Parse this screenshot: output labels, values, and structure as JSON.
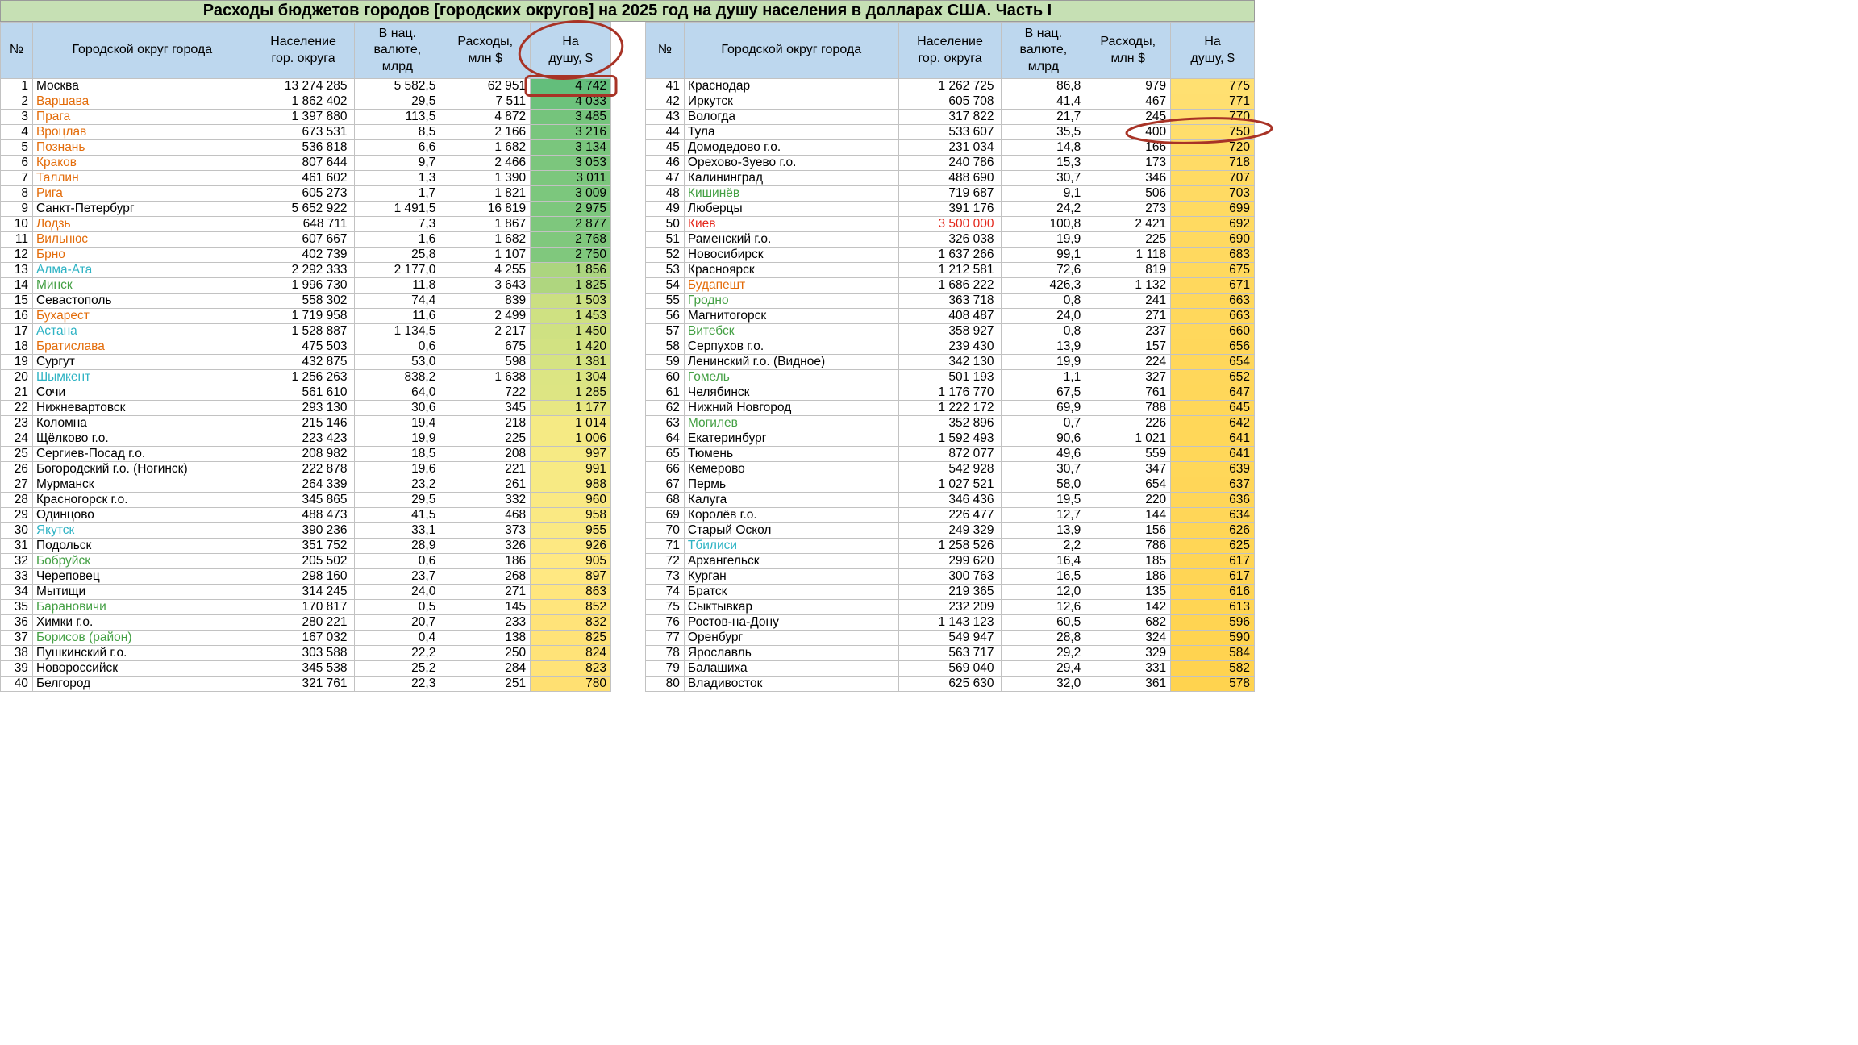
{
  "chart_data": {
    "type": "table",
    "title": "Расходы бюджетов городов [городских округов] на 2025 год на душу населения в долларах США. Часть I",
    "columns": [
      "№",
      "Городской округ города",
      "Население гор. округа",
      "В нац. валюте, млрд",
      "Расходы, млн $",
      "На душу, $"
    ],
    "rows": [
      [
        1,
        "Москва",
        "black",
        "13 274 285",
        "5 582,5",
        "62 951",
        "4 742"
      ],
      [
        2,
        "Варшава",
        "orange",
        "1 862 402",
        "29,5",
        "7 511",
        "4 033"
      ],
      [
        3,
        "Прага",
        "orange",
        "1 397 880",
        "113,5",
        "4 872",
        "3 485"
      ],
      [
        4,
        "Вроцлав",
        "orange",
        "673 531",
        "8,5",
        "2 166",
        "3 216"
      ],
      [
        5,
        "Познань",
        "orange",
        "536 818",
        "6,6",
        "1 682",
        "3 134"
      ],
      [
        6,
        "Краков",
        "orange",
        "807 644",
        "9,7",
        "2 466",
        "3 053"
      ],
      [
        7,
        "Таллин",
        "orange",
        "461 602",
        "1,3",
        "1 390",
        "3 011"
      ],
      [
        8,
        "Рига",
        "orange",
        "605 273",
        "1,7",
        "1 821",
        "3 009"
      ],
      [
        9,
        "Санкт-Петербург",
        "black",
        "5 652 922",
        "1 491,5",
        "16 819",
        "2 975"
      ],
      [
        10,
        "Лодзь",
        "orange",
        "648 711",
        "7,3",
        "1 867",
        "2 877"
      ],
      [
        11,
        "Вильнюс",
        "orange",
        "607 667",
        "1,6",
        "1 682",
        "2 768"
      ],
      [
        12,
        "Брно",
        "orange",
        "402 739",
        "25,8",
        "1 107",
        "2 750"
      ],
      [
        13,
        "Алма-Ата",
        "cyan",
        "2 292 333",
        "2 177,0",
        "4 255",
        "1 856"
      ],
      [
        14,
        "Минск",
        "green",
        "1 996 730",
        "11,8",
        "3 643",
        "1 825"
      ],
      [
        15,
        "Севастополь",
        "black",
        "558 302",
        "74,4",
        "839",
        "1 503"
      ],
      [
        16,
        "Бухарест",
        "orange",
        "1 719 958",
        "11,6",
        "2 499",
        "1 453"
      ],
      [
        17,
        "Астана",
        "cyan",
        "1 528 887",
        "1 134,5",
        "2 217",
        "1 450"
      ],
      [
        18,
        "Братислава",
        "orange",
        "475 503",
        "0,6",
        "675",
        "1 420"
      ],
      [
        19,
        "Сургут",
        "black",
        "432 875",
        "53,0",
        "598",
        "1 381"
      ],
      [
        20,
        "Шымкент",
        "cyan",
        "1 256 263",
        "838,2",
        "1 638",
        "1 304"
      ],
      [
        21,
        "Сочи",
        "black",
        "561 610",
        "64,0",
        "722",
        "1 285"
      ],
      [
        22,
        "Нижневартовск",
        "black",
        "293 130",
        "30,6",
        "345",
        "1 177"
      ],
      [
        23,
        "Коломна",
        "black",
        "215 146",
        "19,4",
        "218",
        "1 014"
      ],
      [
        24,
        "Щёлково г.о.",
        "black",
        "223 423",
        "19,9",
        "225",
        "1 006"
      ],
      [
        25,
        "Сергиев-Посад г.о.",
        "black",
        "208 982",
        "18,5",
        "208",
        "997"
      ],
      [
        26,
        "Богородский г.о. (Ногинск)",
        "black",
        "222 878",
        "19,6",
        "221",
        "991"
      ],
      [
        27,
        "Мурманск",
        "black",
        "264 339",
        "23,2",
        "261",
        "988"
      ],
      [
        28,
        "Красногорск г.о.",
        "black",
        "345 865",
        "29,5",
        "332",
        "960"
      ],
      [
        29,
        "Одинцово",
        "black",
        "488 473",
        "41,5",
        "468",
        "958"
      ],
      [
        30,
        "Якутск",
        "cyan",
        "390 236",
        "33,1",
        "373",
        "955"
      ],
      [
        31,
        "Подольск",
        "black",
        "351 752",
        "28,9",
        "326",
        "926"
      ],
      [
        32,
        "Бобруйск",
        "green",
        "205 502",
        "0,6",
        "186",
        "905"
      ],
      [
        33,
        "Череповец",
        "black",
        "298 160",
        "23,7",
        "268",
        "897"
      ],
      [
        34,
        "Мытищи",
        "black",
        "314 245",
        "24,0",
        "271",
        "863"
      ],
      [
        35,
        "Барановичи",
        "green",
        "170 817",
        "0,5",
        "145",
        "852"
      ],
      [
        36,
        "Химки г.о.",
        "black",
        "280 221",
        "20,7",
        "233",
        "832"
      ],
      [
        37,
        "Борисов (район)",
        "green",
        "167 032",
        "0,4",
        "138",
        "825"
      ],
      [
        38,
        "Пушкинский г.о.",
        "black",
        "303 588",
        "22,2",
        "250",
        "824"
      ],
      [
        39,
        "Новороссийск",
        "black",
        "345 538",
        "25,2",
        "284",
        "823"
      ],
      [
        40,
        "Белгород",
        "black",
        "321 761",
        "22,3",
        "251",
        "780"
      ],
      [
        41,
        "Краснодар",
        "black",
        "1 262 725",
        "86,8",
        "979",
        "775"
      ],
      [
        42,
        "Иркутск",
        "black",
        "605 708",
        "41,4",
        "467",
        "771"
      ],
      [
        43,
        "Вологда",
        "black",
        "317 822",
        "21,7",
        "245",
        "770"
      ],
      [
        44,
        "Тула",
        "black",
        "533 607",
        "35,5",
        "400",
        "750"
      ],
      [
        45,
        "Домодедово г.о.",
        "black",
        "231 034",
        "14,8",
        "166",
        "720"
      ],
      [
        46,
        "Орехово-Зуево г.о.",
        "black",
        "240 786",
        "15,3",
        "173",
        "718"
      ],
      [
        47,
        "Калининград",
        "black",
        "488 690",
        "30,7",
        "346",
        "707"
      ],
      [
        48,
        "Кишинёв",
        "green",
        "719 687",
        "9,1",
        "506",
        "703"
      ],
      [
        49,
        "Люберцы",
        "black",
        "391 176",
        "24,2",
        "273",
        "699"
      ],
      [
        50,
        "Киев",
        "red",
        "3 500 000",
        "100,8",
        "2 421",
        "692"
      ],
      [
        51,
        "Раменский г.о.",
        "black",
        "326 038",
        "19,9",
        "225",
        "690"
      ],
      [
        52,
        "Новосибирск",
        "black",
        "1 637 266",
        "99,1",
        "1 118",
        "683"
      ],
      [
        53,
        "Красноярск",
        "black",
        "1 212 581",
        "72,6",
        "819",
        "675"
      ],
      [
        54,
        "Будапешт",
        "orange",
        "1 686 222",
        "426,3",
        "1 132",
        "671"
      ],
      [
        55,
        "Гродно",
        "green",
        "363 718",
        "0,8",
        "241",
        "663"
      ],
      [
        56,
        "Магнитогорск",
        "black",
        "408 487",
        "24,0",
        "271",
        "663"
      ],
      [
        57,
        "Витебск",
        "green",
        "358 927",
        "0,8",
        "237",
        "660"
      ],
      [
        58,
        "Серпухов г.о.",
        "black",
        "239 430",
        "13,9",
        "157",
        "656"
      ],
      [
        59,
        "Ленинский г.о. (Видное)",
        "black",
        "342 130",
        "19,9",
        "224",
        "654"
      ],
      [
        60,
        "Гомель",
        "green",
        "501 193",
        "1,1",
        "327",
        "652"
      ],
      [
        61,
        "Челябинск",
        "black",
        "1 176 770",
        "67,5",
        "761",
        "647"
      ],
      [
        62,
        "Нижний Новгород",
        "black",
        "1 222 172",
        "69,9",
        "788",
        "645"
      ],
      [
        63,
        "Могилев",
        "green",
        "352 896",
        "0,7",
        "226",
        "642"
      ],
      [
        64,
        "Екатеринбург",
        "black",
        "1 592 493",
        "90,6",
        "1 021",
        "641"
      ],
      [
        65,
        "Тюмень",
        "black",
        "872 077",
        "49,6",
        "559",
        "641"
      ],
      [
        66,
        "Кемерово",
        "black",
        "542 928",
        "30,7",
        "347",
        "639"
      ],
      [
        67,
        "Пермь",
        "black",
        "1 027 521",
        "58,0",
        "654",
        "637"
      ],
      [
        68,
        "Калуга",
        "black",
        "346 436",
        "19,5",
        "220",
        "636"
      ],
      [
        69,
        "Королёв г.о.",
        "black",
        "226 477",
        "12,7",
        "144",
        "634"
      ],
      [
        70,
        "Старый Оскол",
        "black",
        "249 329",
        "13,9",
        "156",
        "626"
      ],
      [
        71,
        "Тбилиси",
        "cyan",
        "1 258 526",
        "2,2",
        "786",
        "625"
      ],
      [
        72,
        "Архангельск",
        "black",
        "299 620",
        "16,4",
        "185",
        "617"
      ],
      [
        73,
        "Курган",
        "black",
        "300 763",
        "16,5",
        "186",
        "617"
      ],
      [
        74,
        "Братск",
        "black",
        "219 365",
        "12,0",
        "135",
        "616"
      ],
      [
        75,
        "Сыктывкар",
        "black",
        "232 209",
        "12,6",
        "142",
        "613"
      ],
      [
        76,
        "Ростов-на-Дону",
        "black",
        "1 143 123",
        "60,5",
        "682",
        "596"
      ],
      [
        77,
        "Оренбург",
        "black",
        "549 947",
        "28,8",
        "324",
        "590"
      ],
      [
        78,
        "Ярославль",
        "black",
        "563 717",
        "29,2",
        "329",
        "584"
      ],
      [
        79,
        "Балашиха",
        "black",
        "569 040",
        "29,4",
        "331",
        "582"
      ],
      [
        80,
        "Владивосток",
        "black",
        "625 630",
        "32,0",
        "361",
        "578"
      ]
    ]
  },
  "header": {
    "num": "№",
    "city": "Городской округ города",
    "pop": "Население\nгор. округа",
    "nat": "В нац.\nвалюте,\nмлрд",
    "exp": "Расходы,\nмлн $",
    "cap": "На\nдушу, $"
  },
  "colors": {
    "title_bg": "#C6E0B4",
    "header_bg": "#BDD7EE",
    "border": "#C2C2C2",
    "city_text": {
      "black": "#000000",
      "orange": "#E36C0A",
      "cyan": "#2EB3C4",
      "green": "#44A044",
      "red": "#E4271B"
    }
  },
  "heat_stops": [
    [
      578,
      "#FFD34F"
    ],
    [
      700,
      "#FFDA62"
    ],
    [
      780,
      "#FFE072"
    ],
    [
      900,
      "#FFE882"
    ],
    [
      1010,
      "#F5EA84"
    ],
    [
      1300,
      "#DCE583"
    ],
    [
      1860,
      "#ACD57F"
    ],
    [
      2750,
      "#80C87D"
    ],
    [
      4742,
      "#63BE7B"
    ]
  ],
  "annotations": {
    "pen_color": "#A83326",
    "items": [
      {
        "shape": "ellipse",
        "around": "заголовок «На душу, $» (левая таблица)"
      },
      {
        "shape": "rectangle",
        "around": "значение 4 742 (Москва, На душу $)"
      },
      {
        "shape": "ellipse",
        "around": "значения 400 / 750 (Тула, Расходы и На душу $)"
      }
    ]
  }
}
